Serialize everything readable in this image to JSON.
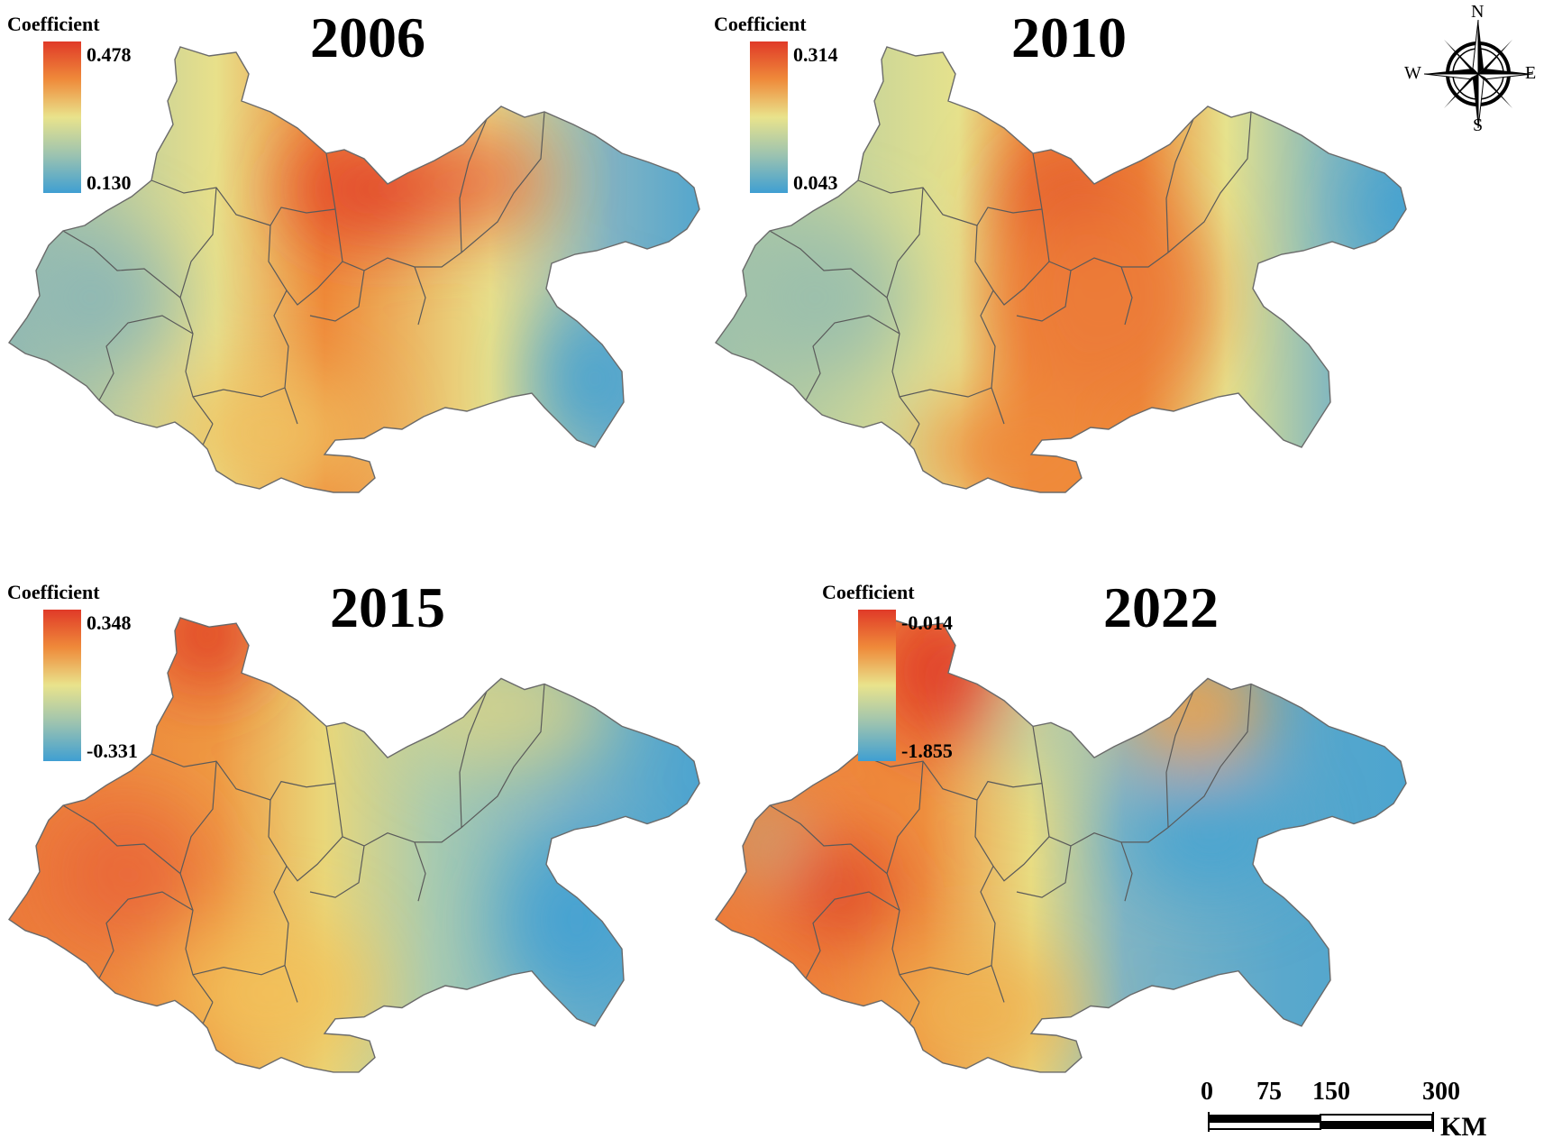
{
  "panels": [
    {
      "year": "2006",
      "legend": {
        "title": "Coefficient",
        "max": "0.478",
        "min": "0.130"
      },
      "colors": {
        "west": "#8fb8b4",
        "centerBand": "#e8e08a",
        "hot": "#e2452b",
        "south": "#f0c060",
        "east": "#4aa3cf",
        "northEast": "#7fb3c4"
      }
    },
    {
      "year": "2010",
      "legend": {
        "title": "Coefficient",
        "max": "0.314",
        "min": "0.043"
      },
      "colors": {
        "west": "#9cc0ac",
        "centerBand": "#e6e28c",
        "hot": "#e04a2a",
        "south": "#ef8a3a",
        "east": "#3f9fd2",
        "northEast": "#86b9bd"
      }
    },
    {
      "year": "2015",
      "legend": {
        "title": "Coefficient",
        "max": "0.348",
        "min": "-0.331"
      },
      "colors": {
        "west": "#ec7a3a",
        "centerBand": "#e9d77a",
        "hot": "#e03a28",
        "south": "#f2c05a",
        "east": "#47a2d1",
        "northEast": "#a9cbb0"
      }
    },
    {
      "year": "2022",
      "legend": {
        "title": "Coefficient",
        "max": "-0.014",
        "min": "-1.855"
      },
      "colors": {
        "west": "#ee7a38",
        "centerBand": "#e8dc82",
        "hot": "#e03a28",
        "south": "#f0b050",
        "east": "#4aa4d0",
        "northEast": "#f2a24a"
      }
    }
  ],
  "compass": {
    "n": "N",
    "s": "S",
    "e": "E",
    "w": "W"
  },
  "scale": {
    "ticks": [
      "0",
      "75",
      "150",
      "300"
    ],
    "unit": "KM"
  }
}
